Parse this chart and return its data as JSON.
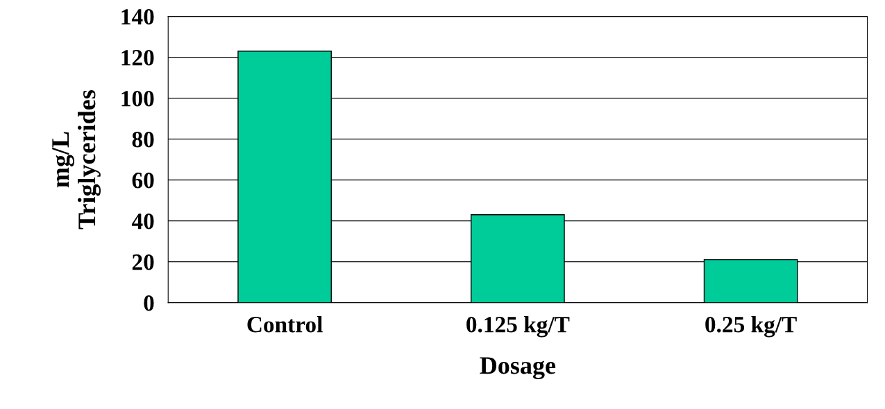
{
  "chart_data": {
    "type": "bar",
    "categories": [
      "Control",
      "0.125 kg/T",
      "0.25 kg/T"
    ],
    "values": [
      123,
      43,
      21
    ],
    "color": "#00cc99",
    "xlabel": "Dosage",
    "ylabel": "mg/L\nTriglycerides",
    "ylim": [
      0,
      140
    ],
    "yticks": [
      0,
      20,
      40,
      60,
      80,
      100,
      120,
      140
    ],
    "grid": "y"
  }
}
